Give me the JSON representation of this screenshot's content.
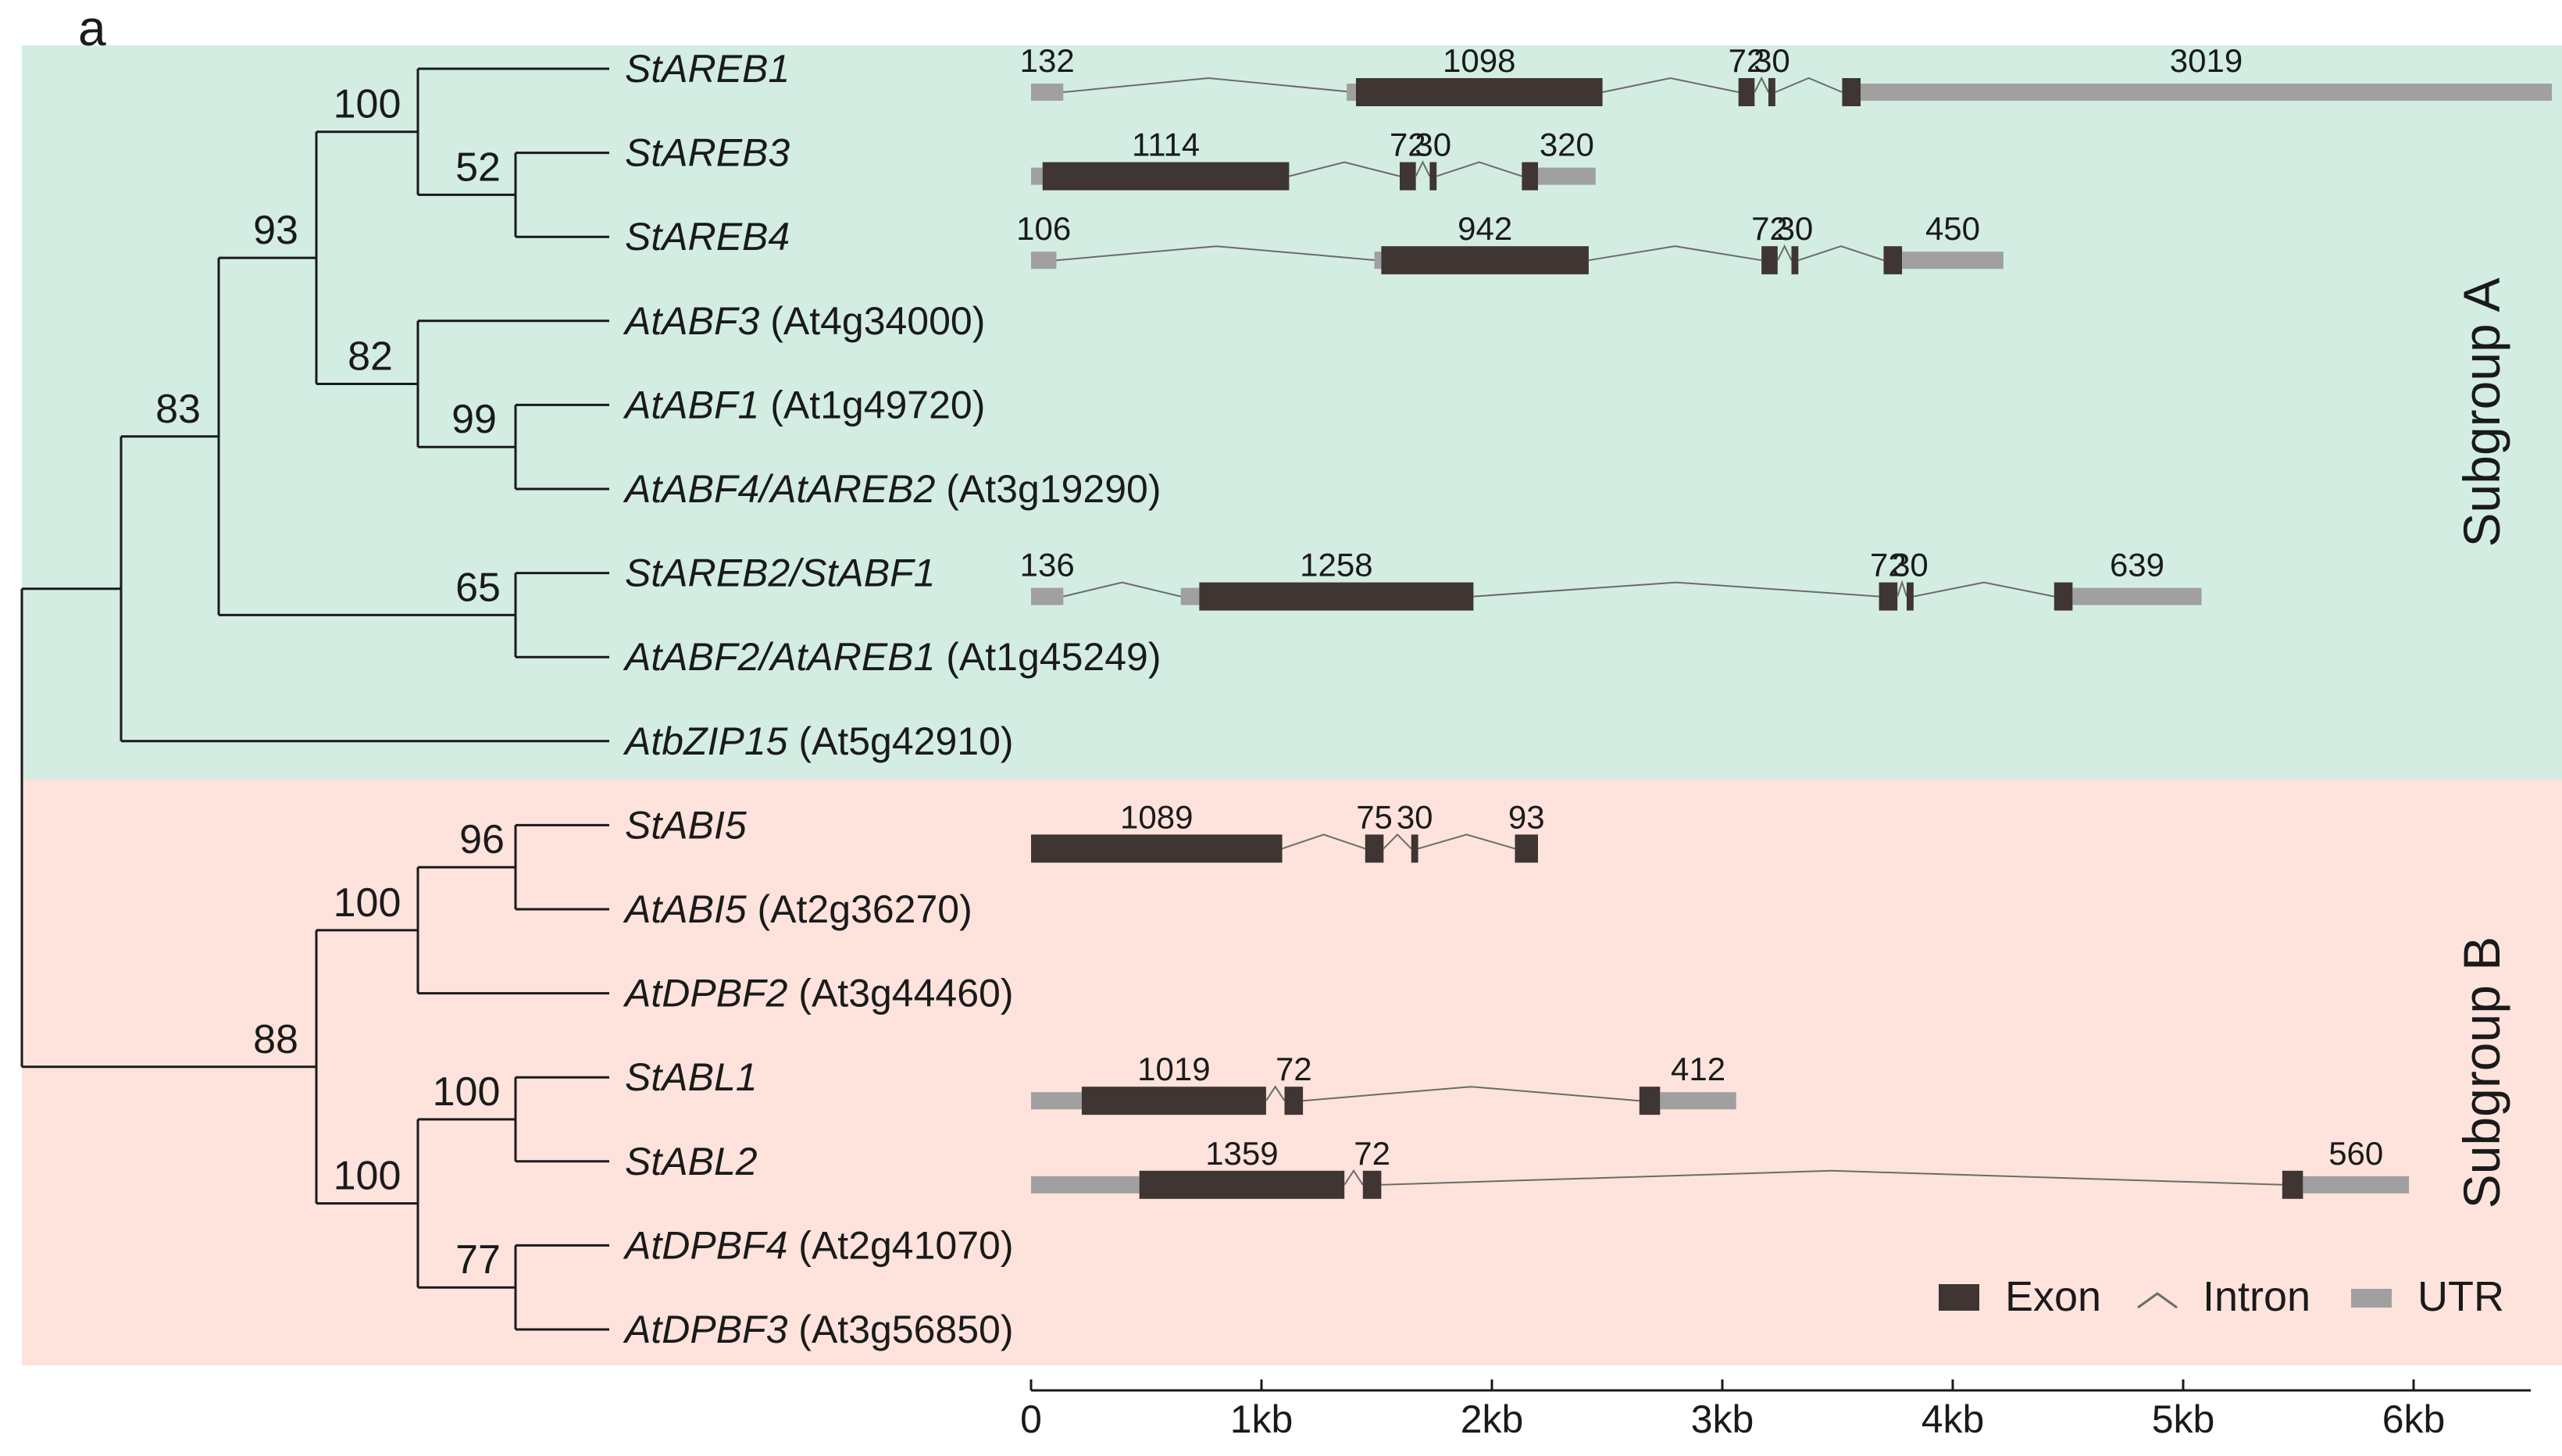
{
  "panel_label": "a",
  "subgroups": [
    {
      "label": "Subgroup A",
      "color": "#d3ede2"
    },
    {
      "label": "Subgroup B",
      "color": "#fde3dc"
    }
  ],
  "colors": {
    "exon": "#3f3533",
    "utr": "#a0a0a0",
    "intron": "#6b6b6b",
    "line": "#1a1a1a"
  },
  "legend": {
    "exon": "Exon",
    "intron": "Intron",
    "utr": "UTR"
  },
  "axis": {
    "ticks": [
      "0",
      "1kb",
      "2kb",
      "3kb",
      "4kb",
      "5kb",
      "6kb"
    ]
  },
  "taxa": [
    {
      "name": "StAREB1",
      "locus": ""
    },
    {
      "name": "StAREB3",
      "locus": ""
    },
    {
      "name": "StAREB4",
      "locus": ""
    },
    {
      "name": "AtABF3",
      "locus": "(At4g34000)"
    },
    {
      "name": "AtABF1",
      "locus": "(At1g49720)"
    },
    {
      "name": "AtABF4/AtAREB2",
      "locus": "(At3g19290)"
    },
    {
      "name": "StAREB2/StABF1",
      "locus": ""
    },
    {
      "name": "AtABF2/AtAREB1",
      "locus": "(At1g45249)"
    },
    {
      "name": "AtbZIP15",
      "locus": "(At5g42910)"
    },
    {
      "name": "StABI5",
      "locus": ""
    },
    {
      "name": "AtABI5",
      "locus": "(At2g36270)"
    },
    {
      "name": "AtDPBF2",
      "locus": "(At3g44460)"
    },
    {
      "name": "StABL1",
      "locus": ""
    },
    {
      "name": "StABL2",
      "locus": ""
    },
    {
      "name": "AtDPBF4",
      "locus": "(At2g41070)"
    },
    {
      "name": "AtDPBF3",
      "locus": "(At3g56850)"
    }
  ],
  "bootstrap": [
    "100",
    "52",
    "93",
    "82",
    "99",
    "83",
    "65",
    "96",
    "100",
    "88",
    "100",
    "100",
    "77"
  ],
  "gene_structures": [
    {
      "gene": "StAREB1",
      "segments": [
        {
          "type": "utr",
          "start": 0.0,
          "end": 0.14,
          "label": "132"
        },
        {
          "type": "intron",
          "start": 0.14,
          "end": 1.4
        },
        {
          "type": "utr",
          "start": 1.37,
          "end": 1.41,
          "label": ""
        },
        {
          "type": "exon",
          "start": 1.41,
          "end": 2.48,
          "label": "1098"
        },
        {
          "type": "intron",
          "start": 2.48,
          "end": 3.07
        },
        {
          "type": "exon",
          "start": 3.07,
          "end": 3.14,
          "label": "72"
        },
        {
          "type": "intron",
          "start": 3.14,
          "end": 3.2
        },
        {
          "type": "exon",
          "start": 3.2,
          "end": 3.23,
          "label": "30"
        },
        {
          "type": "intron",
          "start": 3.23,
          "end": 3.52
        },
        {
          "type": "exon",
          "start": 3.52,
          "end": 3.6,
          "label": ""
        },
        {
          "type": "utr",
          "start": 3.6,
          "end": 6.6,
          "label": "3019"
        }
      ]
    },
    {
      "gene": "StAREB3",
      "segments": [
        {
          "type": "utr",
          "start": 0.0,
          "end": 0.05,
          "label": ""
        },
        {
          "type": "exon",
          "start": 0.05,
          "end": 1.12,
          "label": "1114"
        },
        {
          "type": "intron",
          "start": 1.12,
          "end": 1.6
        },
        {
          "type": "exon",
          "start": 1.6,
          "end": 1.67,
          "label": "72"
        },
        {
          "type": "intron",
          "start": 1.67,
          "end": 1.73
        },
        {
          "type": "exon",
          "start": 1.73,
          "end": 1.76,
          "label": "30"
        },
        {
          "type": "intron",
          "start": 1.76,
          "end": 2.13
        },
        {
          "type": "exon",
          "start": 2.13,
          "end": 2.2,
          "label": ""
        },
        {
          "type": "utr",
          "start": 2.2,
          "end": 2.45,
          "label": "320"
        }
      ]
    },
    {
      "gene": "StAREB4",
      "segments": [
        {
          "type": "utr",
          "start": 0.0,
          "end": 0.11,
          "label": "106"
        },
        {
          "type": "intron",
          "start": 0.11,
          "end": 1.5
        },
        {
          "type": "utr",
          "start": 1.49,
          "end": 1.52,
          "label": ""
        },
        {
          "type": "exon",
          "start": 1.52,
          "end": 2.42,
          "label": "942"
        },
        {
          "type": "intron",
          "start": 2.42,
          "end": 3.17
        },
        {
          "type": "exon",
          "start": 3.17,
          "end": 3.24,
          "label": "72"
        },
        {
          "type": "intron",
          "start": 3.24,
          "end": 3.3
        },
        {
          "type": "exon",
          "start": 3.3,
          "end": 3.33,
          "label": "30"
        },
        {
          "type": "intron",
          "start": 3.33,
          "end": 3.7
        },
        {
          "type": "exon",
          "start": 3.7,
          "end": 3.78,
          "label": ""
        },
        {
          "type": "utr",
          "start": 3.78,
          "end": 4.22,
          "label": "450"
        }
      ]
    },
    {
      "gene": "StAREB2/StABF1",
      "segments": [
        {
          "type": "utr",
          "start": 0.0,
          "end": 0.14,
          "label": "136"
        },
        {
          "type": "intron",
          "start": 0.14,
          "end": 0.65
        },
        {
          "type": "utr",
          "start": 0.65,
          "end": 0.73,
          "label": ""
        },
        {
          "type": "exon",
          "start": 0.73,
          "end": 1.92,
          "label": "1258"
        },
        {
          "type": "intron",
          "start": 1.92,
          "end": 3.68
        },
        {
          "type": "exon",
          "start": 3.68,
          "end": 3.76,
          "label": "72"
        },
        {
          "type": "intron",
          "start": 3.76,
          "end": 3.8
        },
        {
          "type": "exon",
          "start": 3.8,
          "end": 3.83,
          "label": "30"
        },
        {
          "type": "intron",
          "start": 3.83,
          "end": 4.44
        },
        {
          "type": "exon",
          "start": 4.44,
          "end": 4.52,
          "label": ""
        },
        {
          "type": "utr",
          "start": 4.52,
          "end": 5.08,
          "label": "639"
        }
      ]
    },
    {
      "gene": "StABI5",
      "segments": [
        {
          "type": "exon",
          "start": 0.0,
          "end": 1.09,
          "label": "1089"
        },
        {
          "type": "intron",
          "start": 1.09,
          "end": 1.45
        },
        {
          "type": "exon",
          "start": 1.45,
          "end": 1.53,
          "label": "75"
        },
        {
          "type": "intron",
          "start": 1.53,
          "end": 1.65
        },
        {
          "type": "exon",
          "start": 1.65,
          "end": 1.68,
          "label": "30"
        },
        {
          "type": "intron",
          "start": 1.68,
          "end": 2.1
        },
        {
          "type": "exon",
          "start": 2.1,
          "end": 2.2,
          "label": "93"
        }
      ]
    },
    {
      "gene": "StABL1",
      "segments": [
        {
          "type": "utr",
          "start": 0.0,
          "end": 0.22,
          "label": ""
        },
        {
          "type": "exon",
          "start": 0.22,
          "end": 1.02,
          "label": "1019"
        },
        {
          "type": "intron",
          "start": 1.02,
          "end": 1.1
        },
        {
          "type": "exon",
          "start": 1.1,
          "end": 1.18,
          "label": "72"
        },
        {
          "type": "intron",
          "start": 1.18,
          "end": 2.64
        },
        {
          "type": "exon",
          "start": 2.64,
          "end": 2.73,
          "label": ""
        },
        {
          "type": "utr",
          "start": 2.73,
          "end": 3.06,
          "label": "412"
        }
      ]
    },
    {
      "gene": "StABL2",
      "segments": [
        {
          "type": "utr",
          "start": 0.0,
          "end": 0.47,
          "label": ""
        },
        {
          "type": "exon",
          "start": 0.47,
          "end": 1.36,
          "label": "1359"
        },
        {
          "type": "intron",
          "start": 1.36,
          "end": 1.44
        },
        {
          "type": "exon",
          "start": 1.44,
          "end": 1.52,
          "label": "72"
        },
        {
          "type": "intron",
          "start": 1.52,
          "end": 5.43
        },
        {
          "type": "exon",
          "start": 5.43,
          "end": 5.52,
          "label": ""
        },
        {
          "type": "utr",
          "start": 5.52,
          "end": 5.98,
          "label": "560"
        }
      ]
    }
  ]
}
